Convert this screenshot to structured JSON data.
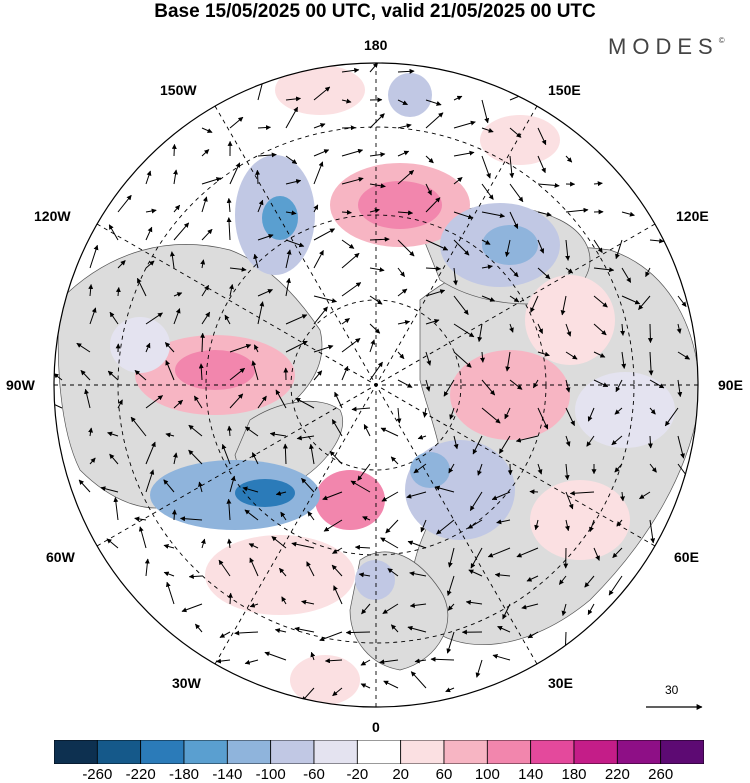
{
  "title": "Base 15/05/2025 00 UTC, valid 21/05/2025 00 UTC",
  "brand": "MODES",
  "brand_mark": "©",
  "longitude_labels": {
    "top": "180",
    "bottom": "0",
    "left": "90W",
    "right": "90E",
    "upper_left_1": "150W",
    "upper_left_2": "120W",
    "upper_right_1": "150E",
    "upper_right_2": "120E",
    "lower_left_1": "60W",
    "lower_left_2": "30W",
    "lower_right_1": "60E",
    "lower_right_2": "30E"
  },
  "reference_vector": "30",
  "colorbar": {
    "colors": [
      "#0d3050",
      "#15598a",
      "#2b7bb9",
      "#5a9fd0",
      "#8fb4dc",
      "#c1c8e4",
      "#e4e3f0",
      "#ffffff",
      "#fbe0e2",
      "#f7b5c3",
      "#f286ad",
      "#e4499c",
      "#c41d88",
      "#8e0f86",
      "#5d0a73"
    ],
    "ticks": [
      "-260",
      "-220",
      "-180",
      "-140",
      "-100",
      "-60",
      "-20",
      "20",
      "60",
      "100",
      "140",
      "180",
      "220",
      "260"
    ]
  }
}
